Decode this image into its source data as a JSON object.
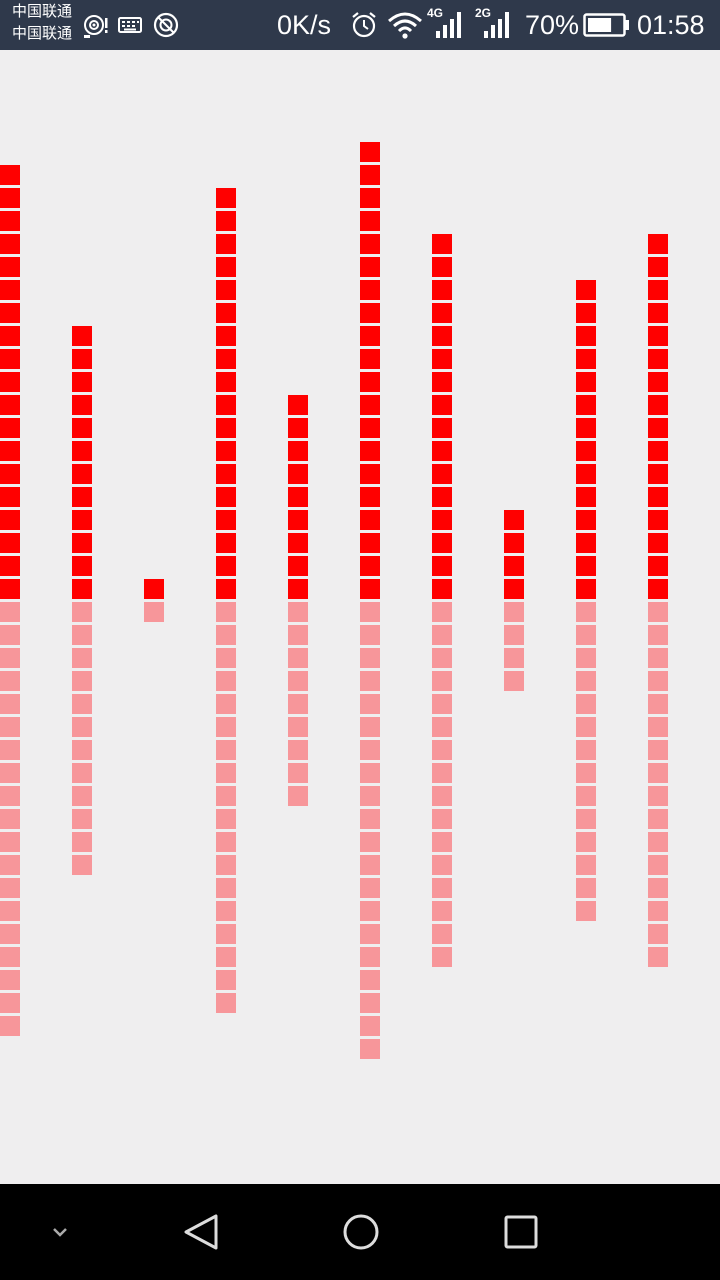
{
  "status_bar": {
    "carrier_1": "中国联通",
    "carrier_2": "中国联通",
    "net_speed": "0K/s",
    "network_1": "4G",
    "network_2": "2G",
    "battery_percent": "70%",
    "battery_level": 0.7,
    "time": "01:58",
    "icons": [
      "hotspot-icon",
      "keyboard-icon",
      "sync-icon",
      "alarm-icon",
      "wifi-icon",
      "signal-4g-icon",
      "signal-2g-icon",
      "battery-icon"
    ]
  },
  "visualizer": {
    "colors": {
      "upper": "#ff0000",
      "lower": "#f7969a"
    },
    "bars": [
      {
        "upper_blocks": 19,
        "lower_blocks": 19
      },
      {
        "upper_blocks": 12,
        "lower_blocks": 12
      },
      {
        "upper_blocks": 1,
        "lower_blocks": 1
      },
      {
        "upper_blocks": 18,
        "lower_blocks": 18
      },
      {
        "upper_blocks": 9,
        "lower_blocks": 9
      },
      {
        "upper_blocks": 20,
        "lower_blocks": 20
      },
      {
        "upper_blocks": 16,
        "lower_blocks": 16
      },
      {
        "upper_blocks": 4,
        "lower_blocks": 4
      },
      {
        "upper_blocks": 14,
        "lower_blocks": 14
      },
      {
        "upper_blocks": 16,
        "lower_blocks": 16
      }
    ]
  },
  "nav_bar": {
    "buttons": [
      "collapse-button",
      "back-button",
      "home-button",
      "recents-button"
    ]
  }
}
